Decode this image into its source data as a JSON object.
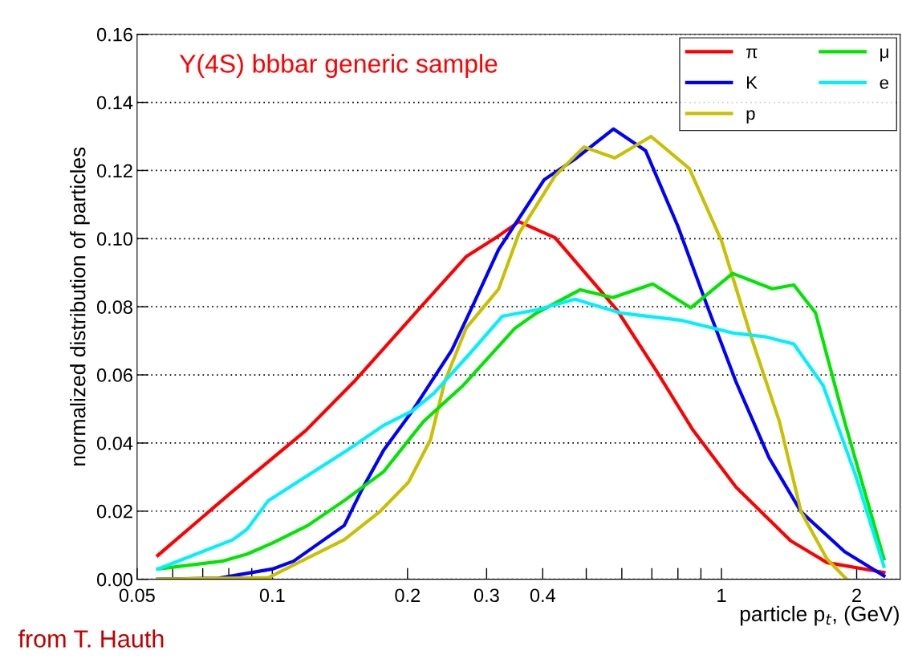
{
  "chart_data": {
    "type": "line",
    "ylabel": "normalized distribution of particles",
    "xlabel": "particle p$_{t}$, (GeV)",
    "annotations": [
      "Y(4S) bbbar generic sample",
      "from T. Hauth"
    ],
    "log": "x",
    "xlim": [
      0.05,
      2.5
    ],
    "xticks": [
      0.05,
      {
        "value": 0.06,
        "label": null
      },
      {
        "value": 0.07,
        "label": null
      },
      {
        "value": 0.08,
        "label": null
      },
      {
        "value": 0.09,
        "label": null
      },
      0.1,
      0.2,
      0.3,
      0.4,
      {
        "value": 0.5,
        "label": null
      },
      {
        "value": 0.6,
        "label": null
      },
      {
        "value": 0.7,
        "label": null
      },
      {
        "value": 0.8,
        "label": null
      },
      {
        "value": 0.9,
        "label": null
      },
      1,
      2
    ],
    "ylim": [
      0,
      0.16
    ],
    "yticks": [
      {
        "value": 0,
        "label": "0.00"
      },
      {
        "value": 0.02,
        "label": "0.02"
      },
      {
        "value": 0.04,
        "label": "0.04"
      },
      {
        "value": 0.06,
        "label": "0.06"
      },
      {
        "value": 0.08,
        "label": "0.08"
      },
      {
        "value": 0.1,
        "label": "0.10"
      },
      {
        "value": 0.12,
        "label": "0.12"
      },
      {
        "value": 0.14,
        "label": "0.14"
      },
      {
        "value": 0.16,
        "label": "0.16"
      }
    ],
    "grid": "y",
    "legend": "top right",
    "marker": "none",
    "line_style": "solid",
    "series": [
      {
        "name": "π",
        "color": "#ff0000",
        "x": [
          0.0556,
          0.0819,
          0.1186,
          0.152,
          0.211,
          0.27,
          0.319,
          0.354,
          0.426,
          0.585,
          0.716,
          0.862,
          1.077,
          1.426,
          1.717,
          2.3
        ],
        "values": [
          0.007,
          0.026,
          0.0436,
          0.058,
          0.079,
          0.0947,
          0.1008,
          0.105,
          0.1003,
          0.0791,
          0.0612,
          0.044,
          0.0271,
          0.0113,
          0.0049,
          0.002
        ]
      },
      {
        "name": "K",
        "color": "#0000ff",
        "x": [
          0.0556,
          0.0759,
          0.1,
          0.1115,
          0.1446,
          0.1584,
          0.177,
          0.205,
          0.251,
          0.281,
          0.319,
          0.403,
          0.476,
          0.575,
          0.678,
          0.8,
          0.929,
          1.077,
          1.276,
          1.504,
          1.88,
          2.3
        ],
        "values": [
          0.0,
          0.0003,
          0.003,
          0.0053,
          0.0158,
          0.0264,
          0.0379,
          0.0494,
          0.0673,
          0.081,
          0.0968,
          0.1173,
          0.1237,
          0.1322,
          0.1258,
          0.1036,
          0.0803,
          0.058,
          0.0357,
          0.0198,
          0.0081,
          0.001
        ]
      },
      {
        "name": "p",
        "color": "#c8c000",
        "x": [
          0.0556,
          0.098,
          0.116,
          0.1446,
          0.174,
          0.201,
          0.225,
          0.242,
          0.27,
          0.319,
          0.354,
          0.426,
          0.494,
          0.579,
          0.697,
          0.848,
          1.0,
          1.16,
          1.346,
          1.504,
          1.717,
          1.9
        ],
        "values": [
          0.0,
          0.0005,
          0.0053,
          0.0116,
          0.02,
          0.0285,
          0.041,
          0.058,
          0.0737,
          0.0852,
          0.1015,
          0.1184,
          0.1269,
          0.1237,
          0.13,
          0.1206,
          0.0994,
          0.0718,
          0.0463,
          0.0198,
          0.006,
          0.0
        ]
      },
      {
        "name": "μ",
        "color": "#00e600",
        "x": [
          0.0556,
          0.0773,
          0.0879,
          0.1,
          0.12,
          0.1446,
          0.177,
          0.217,
          0.265,
          0.347,
          0.388,
          0.485,
          0.573,
          0.703,
          0.855,
          1.059,
          1.297,
          1.449,
          1.62,
          1.88,
          2.3
        ],
        "values": [
          0.003,
          0.0053,
          0.0074,
          0.0106,
          0.0158,
          0.0231,
          0.0316,
          0.0463,
          0.0567,
          0.0737,
          0.0782,
          0.085,
          0.0827,
          0.0867,
          0.0797,
          0.0898,
          0.0853,
          0.0864,
          0.0782,
          0.0463,
          0.006
        ]
      },
      {
        "name": "e",
        "color": "#00f0ff",
        "x": [
          0.0556,
          0.0817,
          0.0879,
          0.098,
          0.12,
          0.147,
          0.177,
          0.205,
          0.229,
          0.275,
          0.325,
          0.388,
          0.472,
          0.595,
          0.816,
          1.059,
          1.25,
          1.449,
          1.684,
          1.99,
          2.3
        ],
        "values": [
          0.003,
          0.0116,
          0.0147,
          0.0231,
          0.0305,
          0.0379,
          0.0452,
          0.0494,
          0.0546,
          0.0662,
          0.0772,
          0.0791,
          0.0822,
          0.0782,
          0.076,
          0.0723,
          0.0712,
          0.0691,
          0.0569,
          0.0304,
          0.0038
        ]
      }
    ]
  }
}
